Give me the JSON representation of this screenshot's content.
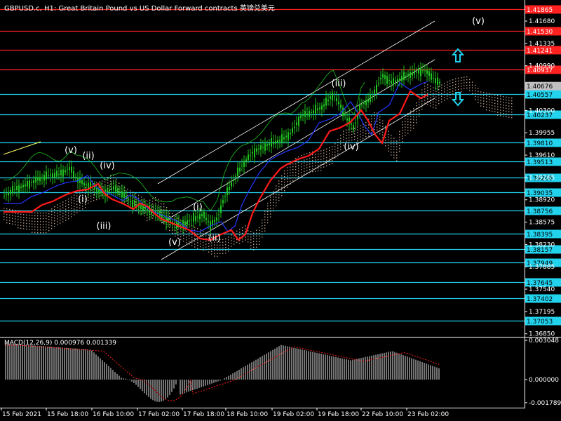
{
  "header": {
    "title": "GBPUSD.c, H1:  Great Britain Pound vs US Dollar Forward contracts 英镑兑美元"
  },
  "colors": {
    "background": "#000000",
    "axis": "#ffffff",
    "res_line": "#ff2020",
    "sup_line": "#22d3ee",
    "candle": "#21c321",
    "ma_red": "#ff1a1a",
    "ma_blue": "#2436ff",
    "channel": "#ffffff",
    "cloud": "#d9b8a0",
    "macd_hist": "#e6e6e6",
    "macd_signal": "#ff2020",
    "price_badge": "#c0c0c0",
    "arrow": "#22d3ee"
  },
  "price_axis": {
    "ticks": [
      "1.41680",
      "1.41335",
      "1.40990",
      "1.40645",
      "1.40300",
      "1.39955",
      "1.39610",
      "1.39265",
      "1.38920",
      "1.38575",
      "1.38230",
      "1.37885",
      "1.37540",
      "1.37195",
      "1.36850"
    ],
    "current": "1.40676"
  },
  "levels": [
    {
      "value": "1.41865",
      "type": "res"
    },
    {
      "value": "1.41530",
      "type": "res"
    },
    {
      "value": "1.41241",
      "type": "res"
    },
    {
      "value": "1.40937",
      "type": "res"
    },
    {
      "value": "1.40557",
      "type": "sup"
    },
    {
      "value": "1.40237",
      "type": "sup"
    },
    {
      "value": "1.39810",
      "type": "sup"
    },
    {
      "value": "1.39513",
      "type": "sup"
    },
    {
      "value": "1.39268",
      "type": "sup"
    },
    {
      "value": "1.39035",
      "type": "sup"
    },
    {
      "value": "1.38756",
      "type": "sup"
    },
    {
      "value": "1.38395",
      "type": "sup"
    },
    {
      "value": "1.38157",
      "type": "sup"
    },
    {
      "value": "1.37949",
      "type": "sup"
    },
    {
      "value": "1.37645",
      "type": "sup"
    },
    {
      "value": "1.37402",
      "type": "sup"
    },
    {
      "value": "1.37053",
      "type": "sup"
    }
  ],
  "wave_labels": [
    "(v)",
    "(ii)",
    "(iv)",
    "(i)",
    "(iii)",
    "(v)",
    "(i)",
    "(ii)",
    "(iii)",
    "(iv)",
    "(v)"
  ],
  "time_axis": [
    "15 Feb 2021",
    "15 Feb 18:00",
    "16 Feb 10:00",
    "17 Feb 02:00",
    "17 Feb 18:00",
    "18 Feb 10:00",
    "19 Feb 02:00",
    "19 Feb 18:00",
    "22 Feb 10:00",
    "23 Feb 02:00"
  ],
  "macd": {
    "label": "MACD(12,26,9) 0.000976 0.001339",
    "ticks": [
      "0.003048",
      "0.000000",
      "-0.001789"
    ]
  },
  "arrows": {
    "up": "up-arrow-icon",
    "down": "down-arrow-icon"
  }
}
